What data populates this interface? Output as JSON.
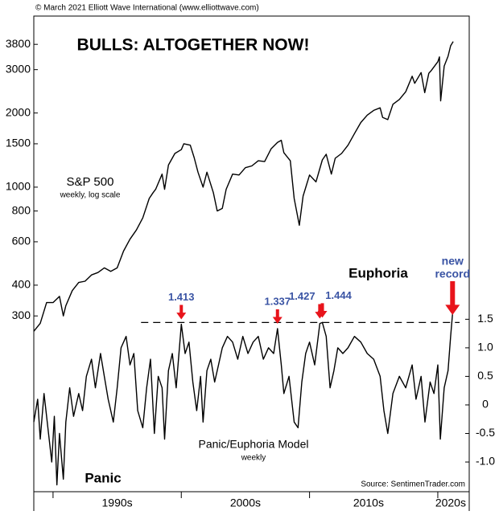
{
  "chart_data": {
    "type": "line",
    "title": "BULLS: ALTOGETHER NOW!",
    "copyright": "© March 2021 Elliott Wave International (www.elliottwave.com)",
    "source": "Source: SentimenTrader.com",
    "xlim": [
      1988.5,
      2022.45
    ],
    "xticks": [
      {
        "value": 1995,
        "label": "1990s"
      },
      {
        "value": 2005,
        "label": "2000s"
      },
      {
        "value": 2014.6,
        "label": "2010s"
      },
      {
        "value": 2021,
        "label": "2020s"
      }
    ],
    "x_separators": [
      1990,
      2000,
      2010,
      2020
    ],
    "ylim": [
      58,
      4950
    ],
    "log_y": true,
    "yticks": [
      3800,
      3000,
      2000,
      1500,
      1000,
      800,
      600,
      400,
      300
    ],
    "y2lim": [
      -1.52,
      6.81
    ],
    "y2ticks": [
      1.5,
      {
        "value": 1.0,
        "label": "1.0"
      },
      0.5,
      0,
      -0.5,
      {
        "value": -1.0,
        "label": "-1.0"
      }
    ],
    "series": [
      {
        "name": "S&P 500",
        "subtitle": "weekly, log scale",
        "color": "#000000",
        "x": [
          1988.5,
          1989.0,
          1989.5,
          1990.0,
          1990.5,
          1990.8,
          1991.0,
          1991.5,
          1992.0,
          1992.5,
          1993.0,
          1993.5,
          1994.0,
          1994.5,
          1995.0,
          1995.5,
          1996.0,
          1996.5,
          1997.0,
          1997.5,
          1997.8,
          1998.0,
          1998.5,
          1998.7,
          1999.0,
          1999.5,
          2000.0,
          2000.2,
          2000.7,
          2001.0,
          2001.3,
          2001.7,
          2002.0,
          2002.5,
          2002.8,
          2003.2,
          2003.5,
          2004.0,
          2004.5,
          2005.0,
          2005.5,
          2006.0,
          2006.5,
          2007.0,
          2007.5,
          2007.8,
          2008.0,
          2008.5,
          2008.8,
          2009.2,
          2009.5,
          2010.0,
          2010.5,
          2011.0,
          2011.3,
          2011.7,
          2012.0,
          2012.5,
          2013.0,
          2013.5,
          2014.0,
          2014.5,
          2015.0,
          2015.5,
          2015.7,
          2016.1,
          2016.5,
          2017.0,
          2017.5,
          2018.0,
          2018.2,
          2018.7,
          2018.98,
          2019.3,
          2019.5,
          2020.0,
          2020.13,
          2020.22,
          2020.5,
          2020.8,
          2021.0,
          2021.2
        ],
        "values": [
          260,
          280,
          340,
          340,
          360,
          300,
          330,
          380,
          410,
          415,
          440,
          450,
          470,
          455,
          470,
          550,
          615,
          670,
          750,
          900,
          950,
          980,
          1130,
          980,
          1230,
          1370,
          1420,
          1500,
          1480,
          1320,
          1150,
          1000,
          1150,
          950,
          800,
          820,
          980,
          1130,
          1120,
          1200,
          1220,
          1280,
          1270,
          1430,
          1520,
          1550,
          1380,
          1280,
          900,
          700,
          920,
          1120,
          1050,
          1290,
          1360,
          1130,
          1310,
          1370,
          1480,
          1650,
          1830,
          1960,
          2050,
          2100,
          1920,
          1880,
          2170,
          2270,
          2440,
          2820,
          2640,
          2920,
          2420,
          2900,
          2980,
          3230,
          3380,
          2240,
          3100,
          3400,
          3750,
          3900
        ]
      },
      {
        "name": "Panic/Euphoria Model",
        "subtitle": "weekly",
        "color": "#000000",
        "axis": "y2",
        "x": [
          1988.5,
          1988.8,
          1989.0,
          1989.3,
          1989.6,
          1989.9,
          1990.1,
          1990.3,
          1990.5,
          1990.8,
          1991.0,
          1991.3,
          1991.6,
          1992.0,
          1992.3,
          1992.6,
          1993.0,
          1993.3,
          1993.7,
          1994.0,
          1994.3,
          1994.7,
          1995.0,
          1995.3,
          1995.7,
          1996.0,
          1996.3,
          1996.6,
          1997.0,
          1997.3,
          1997.6,
          1997.9,
          1998.2,
          1998.5,
          1998.7,
          1999.0,
          1999.3,
          1999.6,
          2000.0,
          2000.3,
          2000.6,
          2000.9,
          2001.2,
          2001.5,
          2001.7,
          2002.0,
          2002.3,
          2002.6,
          2002.9,
          2003.2,
          2003.6,
          2004.0,
          2004.4,
          2004.8,
          2005.2,
          2005.6,
          2006.0,
          2006.4,
          2006.8,
          2007.2,
          2007.5,
          2007.8,
          2008.0,
          2008.4,
          2008.8,
          2009.1,
          2009.4,
          2009.7,
          2010.0,
          2010.4,
          2010.8,
          2011.0,
          2011.3,
          2011.6,
          2011.9,
          2012.2,
          2012.6,
          2013.0,
          2013.5,
          2014.0,
          2014.5,
          2015.0,
          2015.5,
          2015.8,
          2016.1,
          2016.5,
          2017.0,
          2017.5,
          2018.0,
          2018.3,
          2018.7,
          2019.0,
          2019.4,
          2019.7,
          2020.0,
          2020.2,
          2020.5,
          2020.8,
          2021.0,
          2021.15
        ],
        "values": [
          -0.3,
          0.1,
          -0.6,
          0.2,
          -0.4,
          -1.0,
          -0.2,
          -1.4,
          -0.5,
          -1.3,
          -0.3,
          0.3,
          -0.2,
          0.2,
          -0.1,
          0.5,
          0.8,
          0.3,
          0.9,
          0.5,
          0.1,
          -0.3,
          0.3,
          1.0,
          1.2,
          0.7,
          0.9,
          -0.1,
          -0.4,
          0.3,
          0.8,
          -0.5,
          0.5,
          0.3,
          -0.6,
          0.6,
          0.9,
          0.3,
          1.413,
          0.9,
          1.1,
          0.4,
          -0.1,
          0.5,
          -0.3,
          0.6,
          0.8,
          0.4,
          0.7,
          1.0,
          1.2,
          1.1,
          0.8,
          1.2,
          0.9,
          1.1,
          1.2,
          0.8,
          1.0,
          0.9,
          1.337,
          0.7,
          0.2,
          0.5,
          -0.3,
          -0.4,
          0.4,
          0.9,
          1.1,
          0.7,
          1.427,
          1.444,
          1.2,
          0.3,
          0.6,
          1.0,
          0.9,
          1.0,
          1.2,
          1.1,
          0.9,
          0.8,
          0.5,
          -0.1,
          -0.5,
          0.2,
          0.5,
          0.3,
          0.7,
          0.1,
          0.5,
          -0.3,
          0.4,
          0.2,
          0.7,
          -0.6,
          0.3,
          0.6,
          1.2,
          1.6
        ]
      }
    ],
    "annotations": [
      {
        "x": 2000.0,
        "value": 1.413
      },
      {
        "x": 2007.5,
        "value": 1.337
      },
      {
        "x": 2010.8,
        "value": 1.427
      },
      {
        "x": 2011.0,
        "value": 1.444
      }
    ],
    "record": {
      "x": 2021.15,
      "label": [
        "new",
        "record"
      ]
    },
    "zone_labels": {
      "high": "Euphoria",
      "low": "Panic"
    }
  }
}
